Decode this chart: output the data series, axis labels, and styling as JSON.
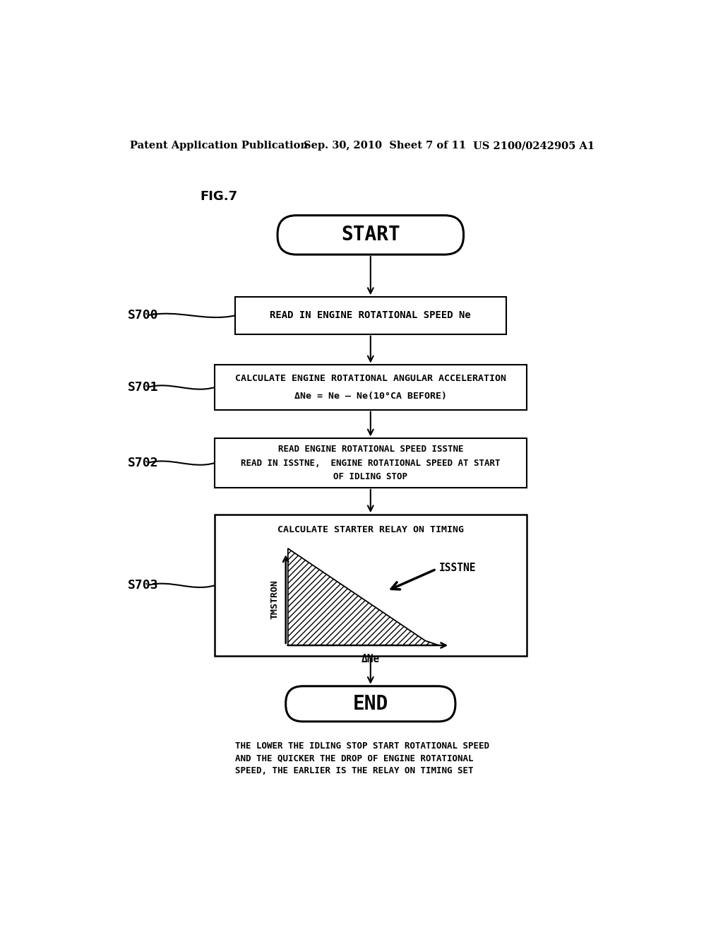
{
  "bg_color": "#ffffff",
  "header_left": "Patent Application Publication",
  "header_center": "Sep. 30, 2010  Sheet 7 of 11",
  "header_right": "US 2100/0242905 A1",
  "fig_label": "FIG.7",
  "start_text": "START",
  "end_text": "END",
  "s700_label": "S700",
  "s700_text": "READ IN ENGINE ROTATIONAL SPEED Ne",
  "s701_label": "S701",
  "s701_text_line1": "CALCULATE ENGINE ROTATIONAL ANGULAR ACCELERATION",
  "s701_text_line2": "ΔNe = Ne — Ne(10°CA BEFORE)",
  "s702_label": "S702",
  "s702_text_line1": "READ ENGINE ROTATIONAL SPEED ISSTNE",
  "s702_text_line2": "READ IN ISSTNE,  ENGINE ROTATIONAL SPEED AT START",
  "s702_text_line3": "OF IDLING STOP",
  "s703_label": "S703",
  "s703_title": "CALCULATE STARTER RELAY ON TIMING",
  "s703_ylabel": "TMSTRON",
  "s703_xlabel": "ΔNe",
  "s703_isstne": "ISSTNE",
  "footer_line1": "THE LOWER THE IDLING STOP START ROTATIONAL SPEED",
  "footer_line2": "AND THE QUICKER THE DROP OF ENGINE ROTATIONAL",
  "footer_line3": "SPEED, THE EARLIER IS THE RELAY ON TIMING SET"
}
